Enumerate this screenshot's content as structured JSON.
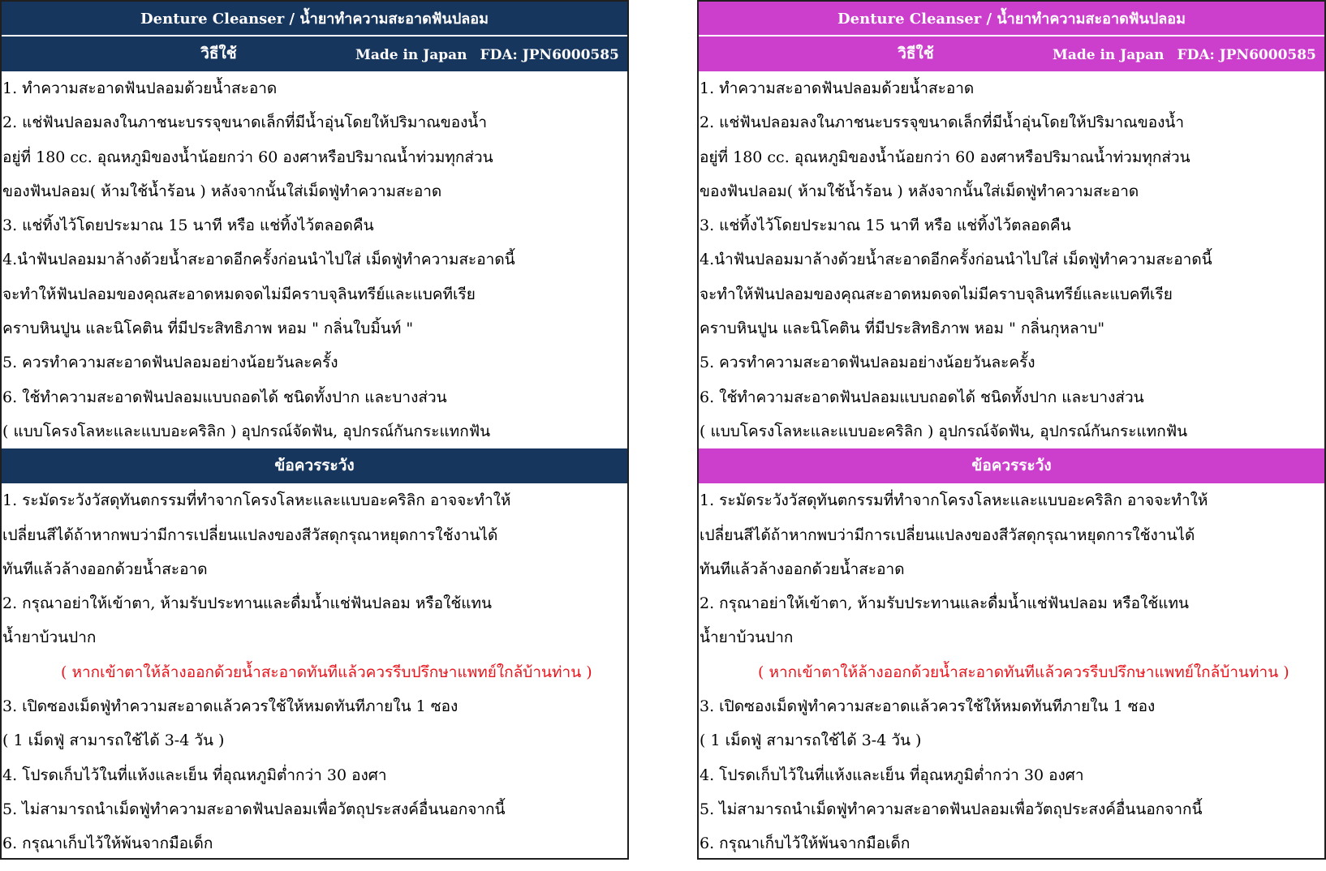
{
  "colors": {
    "left_header": "#17365d",
    "right_header": "#cc3fcc",
    "warning_text": "#e8141c"
  },
  "panels": [
    {
      "title": "Denture Cleanser / น้ำยาทำความสะอาดฟันปลอม",
      "usage_heading": "วิธีใช้",
      "made_in": "Made in Japan",
      "fda": "FDA: JPN6000585",
      "usage_lines": [
        "1.  ทำความสะอาดฟันปลอมด้วยน้ำสะอาด",
        "2. แช่ฟันปลอมลงในภาชนะบรรจุขนาดเล็กที่มีน้ำอุ่นโดยให้ปริมาณของน้ำ",
        "อยู่ที่ 180 cc. อุณหภูมิของน้ำน้อยกว่า  60 องศาหรือปริมาณน้ำท่วมทุกส่วน",
        "ของฟันปลอม( ห้ามใช้น้ำร้อน ) หลังจากนั้นใส่เม็ดฟู่ทำความสะอาด",
        "3. แช่ทิ้งไว้โดยประมาณ  15 นาที  หรือ แช่ทิ้งไว้ตลอดคืน",
        "4.นำฟันปลอมมาล้างด้วยน้ำสะอาดอีกครั้งก่อนนำไปใส่  เม็ดฟู่ทำความสะอาดนี้",
        "จะทำให้ฟันปลอมของคุณสะอาดหมดจดไม่มีคราบจุลินทรีย์และแบคทีเรีย",
        "คราบหินปูน และนิโคติน  ที่มีประสิทธิภาพ  หอม \" กลิ่นใบมิ้นท์ \"",
        "5. ควรทำความสะอาดฟันปลอมอย่างน้อยวันละครั้ง",
        "6. ใช้ทำความสะอาดฟันปลอมแบบถอดได้  ชนิดทั้งปาก และบางส่วน",
        "( แบบโครงโลหะและแบบอะคริลิก ) อุปกรณ์จัดฟัน, อุปกรณ์กันกระแทกฟัน"
      ],
      "caution_heading": "ข้อควรระวัง",
      "caution_lines_a": [
        "1. ระมัดระวังวัสดุทันตกรรมที่ทำจากโครงโลหะและแบบอะคริลิก  อาจจะทำให้",
        "เปลี่ยนสีได้ถ้าหากพบว่ามีการเปลี่ยนแปลงของสีวัสดุกรุณาหยุดการใช้งานได้",
        "ทันทีแล้วล้างออกด้วยน้ำสะอาด",
        "2. กรุณาอย่าให้เข้าตา, ห้ามรับประทานและดื่มน้ำแช่ฟันปลอม  หรือใช้แทน",
        "น้ำยาบ้วนปาก"
      ],
      "warning": "( หากเข้าตาให้ล้างออกด้วยน้ำสะอาดทันทีแล้วควรรีบปรึกษาแพทย์ใกล้บ้านท่าน  )",
      "caution_lines_b": [
        "3. เปิดซองเม็ดฟู่ทำความสะอาดแล้วควรใช้ให้หมดทันทีภายใน  1 ซอง",
        "( 1  เม็ดฟู่  สามารถใช้ได้  3-4  วัน )",
        "4.  โปรดเก็บไว้ในที่แห้งและเย็น  ที่อุณหภูมิต่ำกว่า  30 องศา",
        "5. ไม่สามารถนำเม็ดฟู่ทำความสะอาดฟันปลอมเพื่อวัตถุประสงค์อื่นนอกจากนี้",
        "6. กรุณาเก็บไว้ให้พ้นจากมือเด็ก"
      ]
    },
    {
      "title": "Denture Cleanser / น้ำยาทำความสะอาดฟันปลอม",
      "usage_heading": "วิธีใช้",
      "made_in": "Made in Japan",
      "fda": "FDA: JPN6000585",
      "usage_lines": [
        "1.  ทำความสะอาดฟันปลอมด้วยน้ำสะอาด",
        "2. แช่ฟันปลอมลงในภาชนะบรรจุขนาดเล็กที่มีน้ำอุ่นโดยให้ปริมาณของน้ำ",
        "อยู่ที่ 180 cc. อุณหภูมิของน้ำน้อยกว่า  60 องศาหรือปริมาณน้ำท่วมทุกส่วน",
        "ของฟันปลอม( ห้ามใช้น้ำร้อน ) หลังจากนั้นใส่เม็ดฟู่ทำความสะอาด",
        "3. แช่ทิ้งไว้โดยประมาณ  15 นาที  หรือ แช่ทิ้งไว้ตลอดคืน",
        "4.นำฟันปลอมมาล้างด้วยน้ำสะอาดอีกครั้งก่อนนำไปใส่  เม็ดฟู่ทำความสะอาดนี้",
        "จะทำให้ฟันปลอมของคุณสะอาดหมดจดไม่มีคราบจุลินทรีย์และแบคทีเรีย",
        "คราบหินปูน และนิโคติน  ที่มีประสิทธิภาพ  หอม \" กลิ่นกุหลาบ\"",
        "5. ควรทำความสะอาดฟันปลอมอย่างน้อยวันละครั้ง",
        "6. ใช้ทำความสะอาดฟันปลอมแบบถอดได้  ชนิดทั้งปาก และบางส่วน",
        "( แบบโครงโลหะและแบบอะคริลิก ) อุปกรณ์จัดฟัน, อุปกรณ์กันกระแทกฟัน"
      ],
      "caution_heading": "ข้อควรระวัง",
      "caution_lines_a": [
        "1. ระมัดระวังวัสดุทันตกรรมที่ทำจากโครงโลหะและแบบอะคริลิก  อาจจะทำให้",
        "เปลี่ยนสีได้ถ้าหากพบว่ามีการเปลี่ยนแปลงของสีวัสดุกรุณาหยุดการใช้งานได้",
        "ทันทีแล้วล้างออกด้วยน้ำสะอาด",
        "2. กรุณาอย่าให้เข้าตา, ห้ามรับประทานและดื่มน้ำแช่ฟันปลอม  หรือใช้แทน",
        "น้ำยาบ้วนปาก"
      ],
      "warning": "( หากเข้าตาให้ล้างออกด้วยน้ำสะอาดทันทีแล้วควรรีบปรึกษาแพทย์ใกล้บ้านท่าน  )",
      "caution_lines_b": [
        "3. เปิดซองเม็ดฟู่ทำความสะอาดแล้วควรใช้ให้หมดทันทีภายใน  1 ซอง",
        "( 1  เม็ดฟู่  สามารถใช้ได้  3-4  วัน )",
        "4.  โปรดเก็บไว้ในที่แห้งและเย็น  ที่อุณหภูมิต่ำกว่า  30 องศา",
        "5. ไม่สามารถนำเม็ดฟู่ทำความสะอาดฟันปลอมเพื่อวัตถุประสงค์อื่นนอกจากนี้",
        "6. กรุณาเก็บไว้ให้พ้นจากมือเด็ก"
      ]
    }
  ]
}
